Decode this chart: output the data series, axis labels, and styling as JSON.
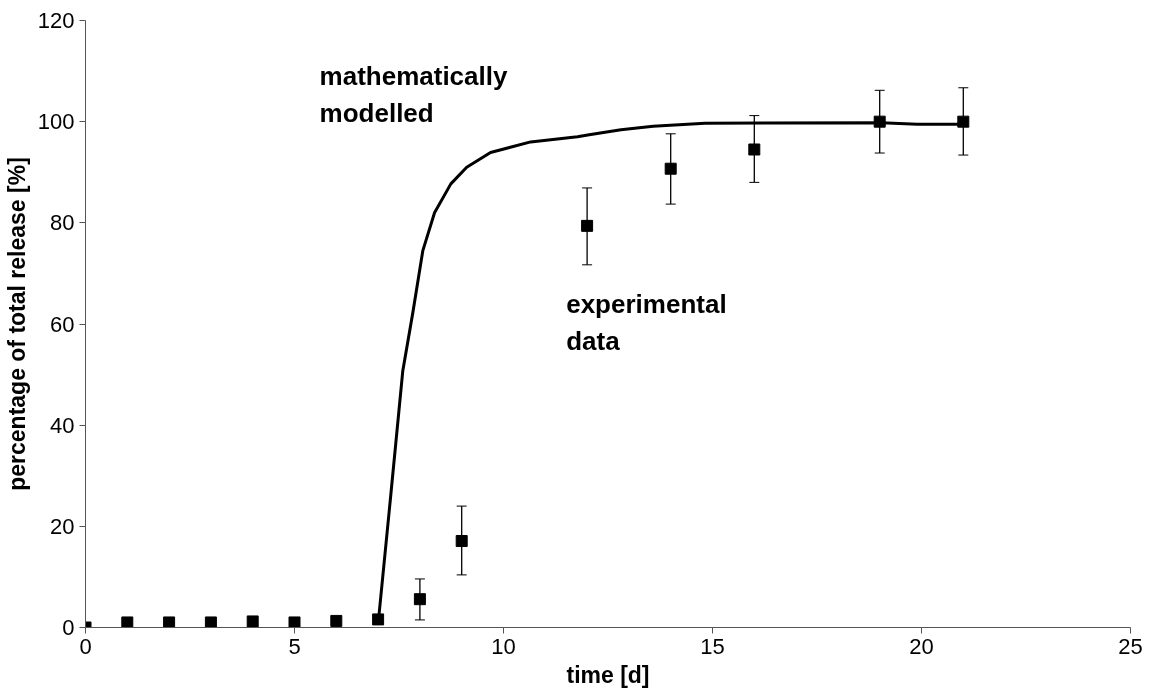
{
  "chart_data": {
    "type": "scatter",
    "xlabel": "time [d]",
    "ylabel": "percentage of total release [%]",
    "xlim": [
      0,
      25
    ],
    "xticks": [
      0,
      5,
      10,
      15,
      20,
      25
    ],
    "ylim": [
      0,
      120
    ],
    "yticks": [
      0,
      20,
      40,
      60,
      80,
      100,
      120
    ],
    "grid": false,
    "marker": "square",
    "annotations": [
      "mathematically\nmodelled",
      "experimental\ndata"
    ],
    "series": [
      {
        "color": "#000000",
        "x": [
          0,
          1,
          2,
          3,
          4,
          5,
          6,
          7,
          8,
          9,
          12,
          14,
          16,
          19,
          21
        ],
        "values": [
          0,
          1.0,
          1.0,
          1.0,
          1.2,
          1.0,
          1.3,
          1.6,
          5.6,
          17.1,
          79.4,
          90.7,
          94.5,
          100,
          100
        ],
        "errors": [
          null,
          null,
          null,
          null,
          null,
          null,
          null,
          null,
          [
            1.5,
            9.6
          ],
          [
            10.4,
            24.0
          ],
          [
            71.7,
            86.9
          ],
          [
            83.7,
            97.6
          ],
          [
            88.0,
            101.2
          ],
          [
            93.8,
            106.2
          ],
          [
            93.4,
            106.7
          ]
        ]
      },
      {
        "type": "line",
        "color": "#000000",
        "line_style": "solid",
        "marker": "none",
        "x": [
          7.01,
          7.3,
          7.59,
          7.83,
          8.07,
          8.35,
          8.74,
          9.12,
          9.69,
          10.65,
          11.77,
          12.05,
          12.81,
          13.58,
          14.82,
          19.04,
          19.9,
          21.0
        ],
        "values": [
          1.5,
          25.9,
          50.7,
          62.2,
          74.5,
          82.0,
          87.7,
          91.0,
          93.9,
          96.0,
          97.0,
          97.4,
          98.4,
          99.1,
          99.7,
          99.8,
          99.5,
          99.5
        ]
      }
    ]
  }
}
